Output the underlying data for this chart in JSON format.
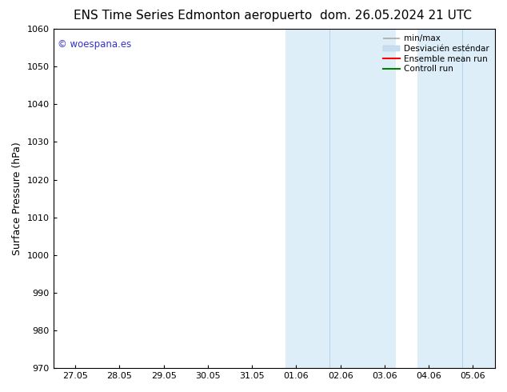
{
  "title_left": "ENS Time Series Edmonton aeropuerto",
  "title_right": "dom. 26.05.2024 21 UTC",
  "ylabel": "Surface Pressure (hPa)",
  "ylim": [
    970,
    1060
  ],
  "yticks": [
    970,
    980,
    990,
    1000,
    1010,
    1020,
    1030,
    1040,
    1050,
    1060
  ],
  "xtick_labels": [
    "27.05",
    "28.05",
    "29.05",
    "30.05",
    "31.05",
    "01.06",
    "02.06",
    "03.06",
    "04.06",
    "05.06"
  ],
  "xtick_positions": [
    0,
    1,
    2,
    3,
    4,
    5,
    6,
    7,
    8,
    9
  ],
  "xlim_min": -0.5,
  "xlim_max": 9.5,
  "shaded_regions": [
    {
      "xmin": 4.75,
      "xmax": 7.25,
      "color": "#ddeef8"
    },
    {
      "xmin": 7.75,
      "xmax": 9.5,
      "color": "#ddeef8"
    }
  ],
  "shaded_divider_lines": [
    {
      "x": 5.75,
      "color": "#b8d4e8"
    },
    {
      "x": 8.75,
      "color": "#b8d4e8"
    }
  ],
  "watermark_text": "© woespana.es",
  "watermark_color": "#3333cc",
  "legend_entries": [
    {
      "label": "min/max",
      "color": "#aaaaaa",
      "lw": 1.2
    },
    {
      "label": "Desviacién esténdar",
      "color": "#c8ddf0",
      "lw": 8
    },
    {
      "label": "Ensemble mean run",
      "color": "red",
      "lw": 1.5
    },
    {
      "label": "Controll run",
      "color": "green",
      "lw": 1.5
    }
  ],
  "bg_color": "#ffffff",
  "axes_bg_color": "#ffffff",
  "title_fontsize": 11,
  "tick_fontsize": 8,
  "ylabel_fontsize": 9
}
